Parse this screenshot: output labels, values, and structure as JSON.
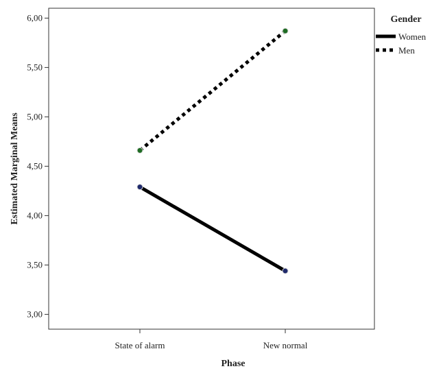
{
  "chart_data": {
    "type": "line",
    "xlabel": "Phase",
    "ylabel": "Estimated Marginal Means",
    "categories": [
      "State of alarm",
      "New normal"
    ],
    "ylim": [
      2.85,
      6.1
    ],
    "yticks": [
      "3,00",
      "3,50",
      "4,00",
      "4,50",
      "5,00",
      "5,50",
      "6,00"
    ],
    "ytick_values": [
      3.0,
      3.5,
      4.0,
      4.5,
      5.0,
      5.5,
      6.0
    ],
    "grid": false,
    "legend": {
      "title": "Gender",
      "placement": "right"
    },
    "series": [
      {
        "name": "Women",
        "values": [
          4.29,
          3.44
        ],
        "line_style": "solid",
        "color": "#000000",
        "marker_color": "#1f2a6b"
      },
      {
        "name": "Men",
        "values": [
          4.66,
          5.87
        ],
        "line_style": "dotted",
        "color": "#000000",
        "marker_color": "#1e6b23"
      }
    ]
  }
}
